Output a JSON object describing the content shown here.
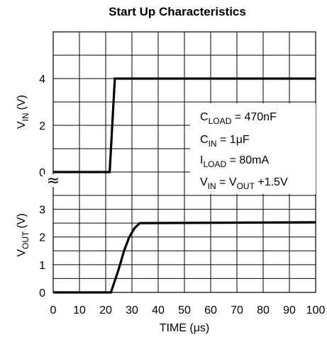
{
  "chart_data": {
    "type": "line",
    "title": "Start Up Characteristics",
    "xlabel": "TIME (μs)",
    "x_ticks": [
      "0",
      "10",
      "20",
      "30",
      "40",
      "50",
      "60",
      "70",
      "80",
      "90",
      "100"
    ],
    "xlim": [
      0,
      100
    ],
    "top_panel": {
      "ylabel_main": "V",
      "ylabel_sub": "IN",
      "ylabel_unit": "(V)",
      "ylim": [
        -1,
        6
      ],
      "y_ticks": [
        "4",
        "2",
        "0"
      ],
      "series": [
        {
          "x": [
            0,
            21.5,
            23.5,
            100
          ],
          "y": [
            0,
            0,
            4,
            4
          ]
        }
      ]
    },
    "bottom_panel": {
      "ylabel_main": "V",
      "ylabel_sub": "OUT",
      "ylabel_unit": "(V)",
      "ylim": [
        0,
        3.5
      ],
      "y_ticks": [
        "3",
        "2",
        "1",
        "0"
      ],
      "series": [
        {
          "x": [
            0,
            22,
            25,
            27,
            29,
            31,
            33,
            100
          ],
          "y": [
            0,
            0,
            0.85,
            1.5,
            2.0,
            2.32,
            2.5,
            2.53
          ]
        }
      ]
    },
    "break_symbol": "≈",
    "annotations": [
      {
        "main": "C",
        "sub": "LOAD",
        "rest": " = 470nF"
      },
      {
        "main": "C",
        "sub": "IN",
        "rest": " = 1μF"
      },
      {
        "main": "I",
        "sub": "LOAD",
        "rest": " = 80mA"
      },
      {
        "main": "V",
        "sub": "IN",
        "rest": " = V",
        "sub2": "OUT",
        "rest2": " +1.5V"
      }
    ]
  }
}
